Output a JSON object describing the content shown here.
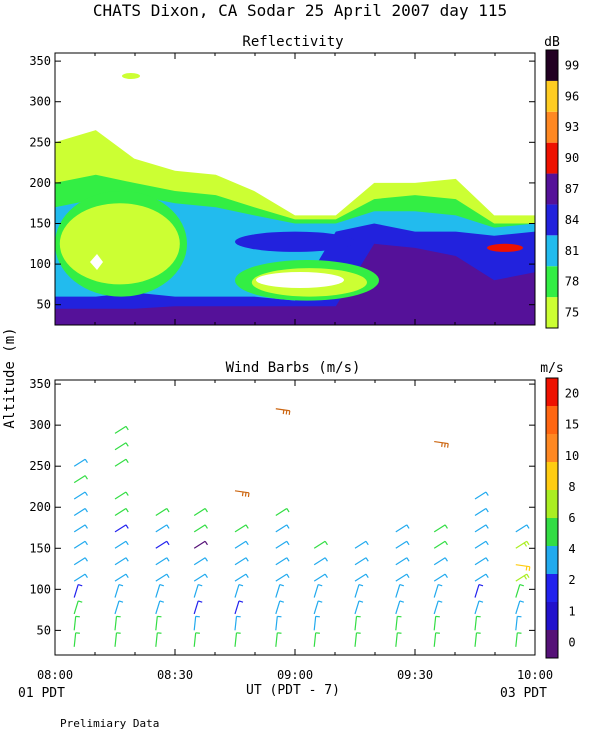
{
  "figure": {
    "title": "CHATS Dixon, CA  Sodar  25 April 2007  day 115",
    "ylabel": "Altitude (m)",
    "xlabel": "UT  (PDT - 7)",
    "left_date": "01 PDT",
    "right_date": "03 PDT",
    "footnote": "Prelimiary Data",
    "x_ticks": [
      "08:00",
      "08:30",
      "09:00",
      "09:30",
      "10:00"
    ]
  },
  "chart_data": [
    {
      "type": "heatmap",
      "title": "Reflectivity",
      "x_range_hours": [
        8.0,
        10.0
      ],
      "ylim": [
        25,
        360
      ],
      "y_ticks": [
        50,
        100,
        150,
        200,
        250,
        300,
        350
      ],
      "colorbar": {
        "unit": "dB",
        "labels": [
          "75",
          "78",
          "81",
          "84",
          "87",
          "90",
          "93",
          "96",
          "99"
        ],
        "colors": [
          "#ccff33",
          "#33ee44",
          "#22bbee",
          "#2222dd",
          "#551199",
          "#ee1100",
          "#ff8822",
          "#ffcc22",
          "#220022"
        ]
      },
      "columns_hours": [
        8.0,
        8.17,
        8.33,
        8.5,
        8.67,
        8.83,
        9.0,
        9.17,
        9.33,
        9.5,
        9.67,
        9.83,
        10.0
      ],
      "layers": [
        {
          "level": "75",
          "color": "#ccff33",
          "top_m": [
            250,
            265,
            230,
            215,
            210,
            190,
            160,
            160,
            200,
            200,
            205,
            160,
            160
          ]
        },
        {
          "level": "78",
          "color": "#33ee44",
          "top_m": [
            200,
            210,
            200,
            190,
            185,
            170,
            155,
            155,
            180,
            185,
            180,
            150,
            150
          ]
        },
        {
          "level": "81",
          "color": "#22bbee",
          "top_m": [
            170,
            180,
            185,
            175,
            170,
            160,
            150,
            150,
            165,
            165,
            160,
            145,
            150
          ]
        },
        {
          "level": "84",
          "color": "#2222dd",
          "top_m": [
            60,
            60,
            65,
            60,
            60,
            60,
            55,
            140,
            150,
            140,
            140,
            135,
            140
          ]
        },
        {
          "level": "87",
          "color": "#551199",
          "top_m": [
            45,
            45,
            45,
            48,
            48,
            48,
            48,
            48,
            125,
            120,
            110,
            80,
            90
          ]
        }
      ],
      "inner_regions": [
        {
          "level": "78",
          "description": "lower-left green area",
          "hours": [
            8.0,
            8.55
          ],
          "alt_m": [
            60,
            190
          ]
        },
        {
          "level": "75",
          "description": "yellow-green core",
          "hours": [
            8.02,
            8.52
          ],
          "alt_m": [
            75,
            175
          ]
        },
        {
          "level": "84",
          "description": "blue band",
          "hours": [
            8.75,
            9.25
          ],
          "alt_m": [
            115,
            140
          ]
        },
        {
          "level": "78",
          "description": "green mid area",
          "hours": [
            8.75,
            9.35
          ],
          "alt_m": [
            55,
            105
          ]
        },
        {
          "level": "75",
          "description": "white-centered patch",
          "hours": [
            8.82,
            9.3
          ],
          "alt_m": [
            60,
            95
          ]
        },
        {
          "level": "90",
          "description": "red streak",
          "hours": [
            9.8,
            9.95
          ],
          "alt_m": [
            115,
            125
          ]
        }
      ]
    },
    {
      "type": "scatter",
      "title": "Wind Barbs (m/s)",
      "x_range_hours": [
        8.0,
        10.0
      ],
      "ylim": [
        20,
        355
      ],
      "y_ticks": [
        50,
        100,
        150,
        200,
        250,
        300,
        350
      ],
      "colorbar": {
        "unit": "m/s",
        "labels": [
          "0",
          "1",
          "2",
          "4",
          "6",
          "8",
          "10",
          "15",
          "20"
        ],
        "colors": [
          "#551177",
          "#2211cc",
          "#2222ee",
          "#22aaee",
          "#33dd44",
          "#aaee22",
          "#ffcc11",
          "#ff8822",
          "#ff6611",
          "#ee1100"
        ]
      },
      "barbs": [
        {
          "t": 8.08,
          "alts": [
            30,
            50,
            70,
            90,
            110,
            130,
            150,
            170,
            190,
            210,
            230,
            250
          ],
          "speeds": [
            6,
            6,
            5,
            2,
            4,
            4,
            4,
            4,
            4,
            4,
            6,
            4
          ]
        },
        {
          "t": 8.25,
          "alts": [
            30,
            50,
            70,
            90,
            110,
            130,
            150,
            170,
            190,
            210,
            250,
            270,
            290
          ],
          "speeds": [
            5,
            5,
            4,
            4,
            4,
            4,
            4,
            2,
            5,
            5,
            5,
            5,
            5
          ]
        },
        {
          "t": 8.42,
          "alts": [
            30,
            50,
            70,
            90,
            110,
            130,
            150,
            170,
            190
          ],
          "speeds": [
            5,
            5,
            4,
            4,
            3,
            4,
            2,
            4,
            6
          ]
        },
        {
          "t": 8.58,
          "alts": [
            30,
            50,
            70,
            90,
            110,
            130,
            150,
            170,
            190
          ],
          "speeds": [
            5,
            4,
            2,
            4,
            3,
            4,
            1,
            5,
            6
          ]
        },
        {
          "t": 8.75,
          "alts": [
            30,
            50,
            70,
            90,
            110,
            130,
            150,
            170,
            220
          ],
          "speeds": [
            5,
            4,
            2,
            4,
            4,
            4,
            4,
            5,
            15
          ]
        },
        {
          "t": 8.92,
          "alts": [
            30,
            50,
            70,
            90,
            110,
            130,
            150,
            170,
            190,
            320
          ],
          "speeds": [
            5,
            4,
            4,
            4,
            4,
            4,
            4,
            4,
            5,
            15
          ]
        },
        {
          "t": 9.08,
          "alts": [
            30,
            50,
            70,
            90,
            110,
            130,
            150
          ],
          "speeds": [
            5,
            4,
            4,
            4,
            4,
            4,
            6
          ]
        },
        {
          "t": 9.25,
          "alts": [
            30,
            50,
            70,
            90,
            110,
            130,
            150
          ],
          "speeds": [
            5,
            5,
            4,
            4,
            4,
            4,
            4
          ]
        },
        {
          "t": 9.42,
          "alts": [
            30,
            50,
            70,
            90,
            110,
            130,
            150,
            170
          ],
          "speeds": [
            5,
            5,
            4,
            4,
            4,
            4,
            4,
            4
          ]
        },
        {
          "t": 9.58,
          "alts": [
            30,
            50,
            70,
            90,
            110,
            130,
            150,
            170,
            280
          ],
          "speeds": [
            5,
            5,
            4,
            4,
            4,
            4,
            6,
            6,
            15
          ]
        },
        {
          "t": 9.75,
          "alts": [
            30,
            50,
            70,
            90,
            110,
            130,
            150,
            170,
            190,
            210
          ],
          "speeds": [
            5,
            5,
            4,
            2,
            4,
            4,
            4,
            4,
            4,
            4
          ]
        },
        {
          "t": 9.92,
          "alts": [
            30,
            50,
            70,
            90,
            110,
            130,
            150,
            170
          ],
          "speeds": [
            5,
            4,
            4,
            6,
            8,
            10,
            8,
            4
          ]
        }
      ]
    }
  ]
}
